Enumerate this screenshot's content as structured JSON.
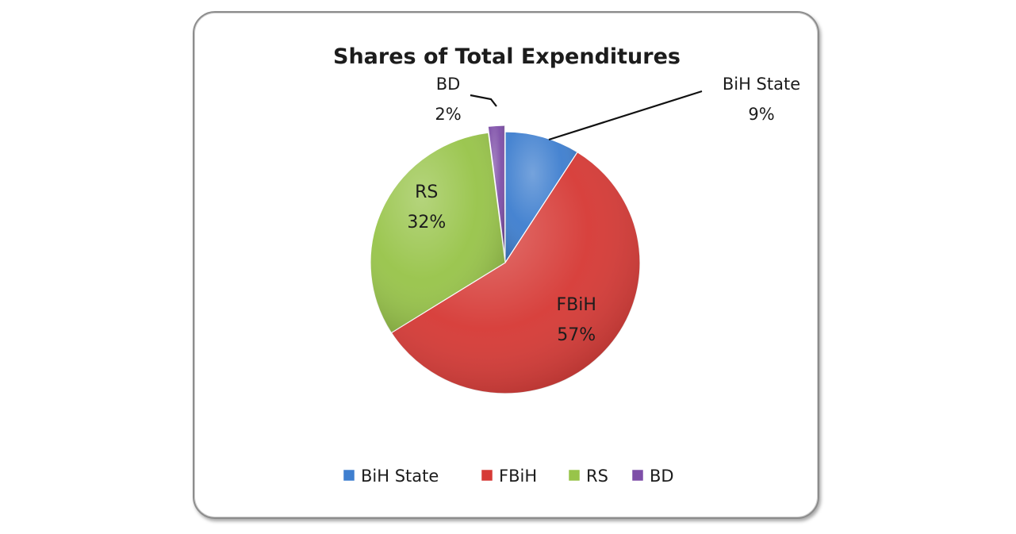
{
  "chart_data": {
    "type": "pie",
    "title": "Shares of Total Expenditures",
    "categories": [
      "BiH State",
      "FBiH",
      "RS",
      "BD"
    ],
    "values": [
      9,
      57,
      32,
      2
    ],
    "value_labels": [
      "9%",
      "57%",
      "32%",
      "2%"
    ],
    "colors": [
      "#3f7fcf",
      "#d63a36",
      "#98c44a",
      "#7e4fa8"
    ],
    "data_label_placement": [
      "outside",
      "inside",
      "inside",
      "outside"
    ],
    "legend_position": "bottom"
  }
}
